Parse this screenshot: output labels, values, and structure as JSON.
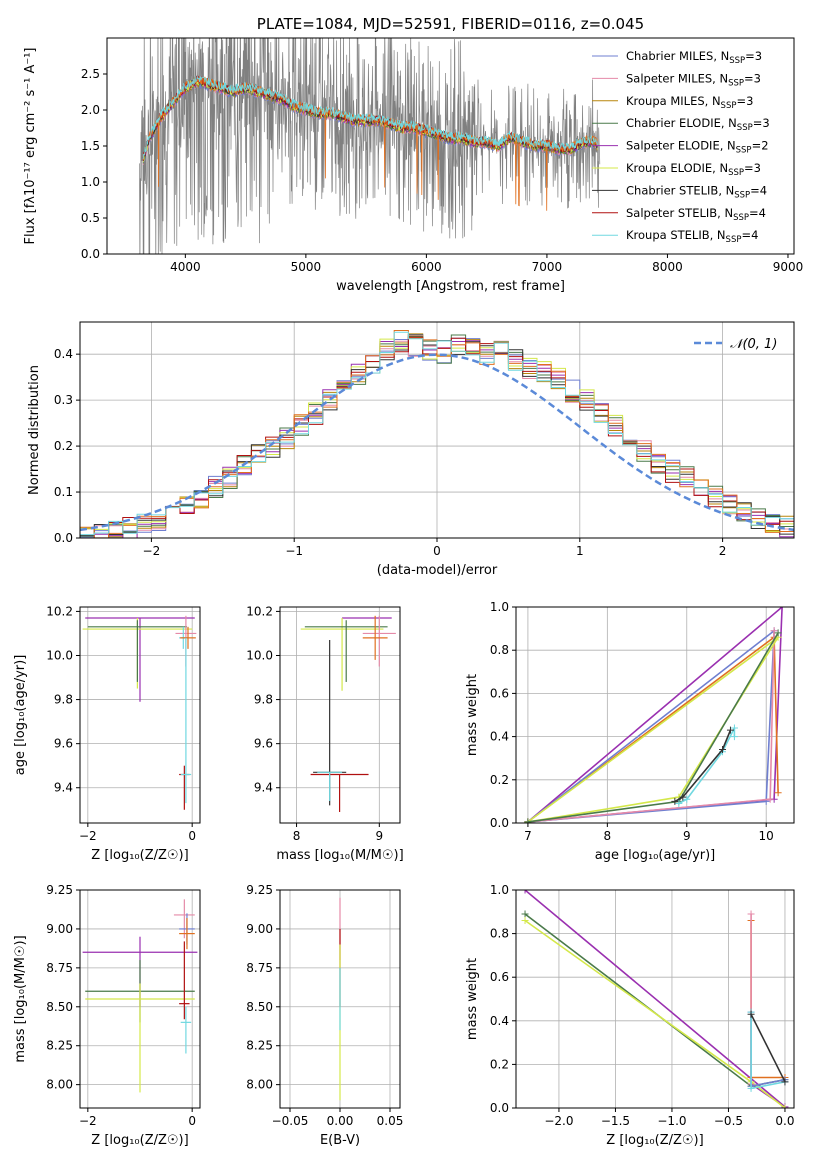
{
  "colors": {
    "chabrier_miles": "#6f7fd0",
    "salpeter_miles": "#e58aa8",
    "kroupa_miles": "#b8860b",
    "chabrier_elodie": "#4a7a4a",
    "salpeter_elodie": "#9a30b0",
    "kroupa_elodie": "#d4e84a",
    "chabrier_stelib": "#333333",
    "salpeter_stelib": "#b01010",
    "kroupa_stelib": "#70d8e0",
    "data": "#808080",
    "orange": "#e07020",
    "normal": "#5b8ad8"
  },
  "chart_data": [
    {
      "id": "spectrum",
      "type": "line",
      "title": "PLATE=1084, MJD=52591, FIBERID=0116, z=0.045",
      "xlabel": "wavelength [Angstrom, rest frame]",
      "ylabel": "Flux [fλ10⁻¹⁷ erg cm⁻² s⁻¹ A⁻¹]",
      "xlim": [
        3350,
        9050
      ],
      "ylim": [
        0,
        3.0
      ],
      "xticks": [
        "4000",
        "5000",
        "6000",
        "7000",
        "8000",
        "9000"
      ],
      "yticks": [
        "0.0",
        "0.5",
        "1.0",
        "1.5",
        "2.0",
        "2.5"
      ],
      "legend_position": "right",
      "legend": [
        "Chabrier MILES, N_SSP=3",
        "Salpeter MILES, N_SSP=3",
        "Kroupa MILES, N_SSP=3",
        "Chabrier ELODIE, N_SSP=3",
        "Salpeter ELODIE, N_SSP=2",
        "Kroupa ELODIE, N_SSP=3",
        "Chabrier STELIB, N_SSP=4",
        "Salpeter STELIB, N_SSP=4",
        "Kroupa STELIB, N_SSP=4"
      ],
      "model_envelope": {
        "x": [
          3650,
          3700,
          3800,
          3900,
          4000,
          4100,
          4200,
          4300,
          4400,
          4500,
          4600,
          4700,
          4800,
          4900,
          5000,
          5100,
          5200,
          5300,
          5400,
          5500,
          5600,
          5700,
          5800,
          5900,
          6000,
          6100,
          6200,
          6300,
          6400,
          6500,
          6600,
          6700,
          6800,
          6900,
          7000,
          7100,
          7200,
          7300,
          7400,
          7420
        ],
        "y": [
          1.3,
          1.6,
          1.9,
          2.1,
          2.3,
          2.4,
          2.35,
          2.3,
          2.25,
          2.3,
          2.25,
          2.2,
          2.15,
          2.05,
          2.0,
          1.95,
          1.95,
          1.9,
          1.85,
          1.85,
          1.85,
          1.8,
          1.75,
          1.75,
          1.7,
          1.65,
          1.6,
          1.6,
          1.55,
          1.55,
          1.5,
          1.62,
          1.55,
          1.5,
          1.5,
          1.45,
          1.45,
          1.55,
          1.55,
          1.5
        ]
      },
      "data_range": [
        3620,
        7440
      ]
    },
    {
      "id": "residuals",
      "type": "bar",
      "xlabel": "(data-model)/error",
      "ylabel": "Normed distribution",
      "xlim": [
        -2.5,
        2.5
      ],
      "ylim": [
        0,
        0.47
      ],
      "xticks": [
        "−2",
        "−1",
        "0",
        "1",
        "2"
      ],
      "yticks": [
        "0.0",
        "0.1",
        "0.2",
        "0.3",
        "0.4"
      ],
      "legend_position": "top-right",
      "legend": [
        "𝒩(0, 1)"
      ],
      "bin_width": 0.1,
      "bin_start": -2.5,
      "values": [
        0.005,
        0.01,
        0.015,
        0.02,
        0.03,
        0.04,
        0.055,
        0.07,
        0.085,
        0.11,
        0.13,
        0.155,
        0.18,
        0.2,
        0.215,
        0.245,
        0.27,
        0.3,
        0.33,
        0.355,
        0.38,
        0.41,
        0.43,
        0.42,
        0.41,
        0.405,
        0.42,
        0.41,
        0.4,
        0.405,
        0.39,
        0.37,
        0.36,
        0.345,
        0.32,
        0.3,
        0.27,
        0.245,
        0.22,
        0.19,
        0.16,
        0.145,
        0.135,
        0.115,
        0.09,
        0.07,
        0.06,
        0.045,
        0.035,
        0.025
      ]
    },
    {
      "id": "age_vs_z",
      "type": "scatter",
      "xlabel": "Z [log₁₀(Z/Z☉)]",
      "ylabel": "age  [log₁₀(age/yr)]",
      "xlim": [
        -2.15,
        0.15
      ],
      "ylim": [
        9.24,
        10.22
      ],
      "xticks": [
        "−2",
        "0"
      ],
      "yticks": [
        "9.4",
        "9.6",
        "9.8",
        "10.0",
        "10.2"
      ],
      "points": [
        {
          "s": "salpeter_elodie",
          "x": -1.0,
          "xerr": 1.05,
          "y": 10.17,
          "yerr": [
            0.38,
            0.0
          ]
        },
        {
          "s": "kroupa_elodie",
          "x": -1.05,
          "xerr": 1.05,
          "y": 10.12,
          "yerr": [
            0.27,
            0.05
          ]
        },
        {
          "s": "chabrier_elodie",
          "x": -1.05,
          "xerr": 0.95,
          "y": 10.13,
          "yerr": [
            0.25,
            0.03
          ]
        },
        {
          "s": "salpeter_miles",
          "x": -0.12,
          "xerr": 0.2,
          "y": 10.1,
          "yerr": [
            0.15,
            0.08
          ]
        },
        {
          "s": "kroupa_stelib",
          "x": -0.17,
          "xerr": 0.08,
          "y": 10.08,
          "yerr": [
            0.05,
            0.05
          ]
        },
        {
          "s": "orange",
          "x": -0.08,
          "xerr": 0.15,
          "y": 10.08,
          "yerr": [
            0.05,
            0.05
          ]
        },
        {
          "s": "salpeter_stelib",
          "x": -0.15,
          "xerr": 0.1,
          "y": 9.46,
          "yerr": [
            0.16,
            0.04
          ]
        },
        {
          "s": "kroupa_stelib",
          "x": -0.12,
          "xerr": 0.1,
          "y": 9.46,
          "yerr": [
            0.13,
            0.62
          ]
        }
      ]
    },
    {
      "id": "age_vs_mass",
      "type": "scatter",
      "xlabel": "mass [log₁₀(M/M☉)]",
      "ylabel": "",
      "xlim": [
        7.8,
        9.25
      ],
      "ylim": [
        9.24,
        10.22
      ],
      "xticks": [
        "8",
        "9"
      ],
      "yticks": [
        "9.4",
        "9.6",
        "9.8",
        "10.0",
        "10.2"
      ],
      "points": [
        {
          "s": "salpeter_elodie",
          "x": 8.85,
          "xerr": 0.3,
          "y": 10.17,
          "yerr": [
            0.0,
            0.0
          ]
        },
        {
          "s": "kroupa_elodie",
          "x": 8.55,
          "xerr": 0.5,
          "y": 10.12,
          "yerr": [
            0.28,
            0.05
          ]
        },
        {
          "s": "chabrier_elodie",
          "x": 8.6,
          "xerr": 0.5,
          "y": 10.13,
          "yerr": [
            0.25,
            0.03
          ]
        },
        {
          "s": "salpeter_miles",
          "x": 9.0,
          "xerr": 0.2,
          "y": 10.1,
          "yerr": [
            0.15,
            0.08
          ]
        },
        {
          "s": "orange",
          "x": 8.95,
          "xerr": 0.15,
          "y": 10.08,
          "yerr": [
            0.1,
            0.1
          ]
        },
        {
          "s": "chabrier_stelib",
          "x": 8.4,
          "xerr": 0.2,
          "y": 9.47,
          "yerr": [
            0.15,
            0.6
          ]
        },
        {
          "s": "salpeter_stelib",
          "x": 8.52,
          "xerr": 0.35,
          "y": 9.46,
          "yerr": [
            0.17,
            0.0
          ]
        },
        {
          "s": "kroupa_stelib",
          "x": 8.4,
          "xerr": 0.15,
          "y": 9.47,
          "yerr": [
            0.13,
            0.0
          ]
        }
      ]
    },
    {
      "id": "weight_vs_age",
      "type": "line",
      "xlabel": "age  [log₁₀(age/yr)]",
      "ylabel": "mass weight",
      "xlim": [
        6.85,
        10.35
      ],
      "ylim": [
        0,
        1.0
      ],
      "xticks": [
        "7",
        "8",
        "9",
        "10"
      ],
      "yticks": [
        "0.0",
        "0.2",
        "0.4",
        "0.6",
        "0.8",
        "1.0"
      ],
      "series": [
        {
          "s": "salpeter_elodie",
          "x": [
            7.0,
            10.2,
            10.1,
            7.0
          ],
          "y": [
            0.005,
            1.0,
            0.11,
            0.005
          ]
        },
        {
          "s": "orange",
          "x": [
            7.0,
            10.1,
            10.15
          ],
          "y": [
            0.005,
            0.86,
            0.14
          ]
        },
        {
          "s": "chabrier_miles",
          "x": [
            7.0,
            10.0,
            10.1,
            7.0
          ],
          "y": [
            0.005,
            0.1,
            0.89,
            0.005
          ]
        },
        {
          "s": "salpeter_miles",
          "x": [
            7.0,
            10.05,
            10.1
          ],
          "y": [
            0.005,
            0.11,
            0.89
          ]
        },
        {
          "s": "kroupa_elodie",
          "x": [
            7.0,
            8.9,
            10.15,
            7.0
          ],
          "y": [
            0.005,
            0.12,
            0.86,
            0.005
          ]
        },
        {
          "s": "chabrier_elodie",
          "x": [
            7.0,
            8.9,
            10.15
          ],
          "y": [
            0.005,
            0.1,
            0.88
          ]
        },
        {
          "s": "kroupa_stelib",
          "x": [
            8.9,
            9.0,
            9.45,
            9.6,
            9.6
          ],
          "y": [
            0.09,
            0.11,
            0.33,
            0.44,
            0.4
          ]
        },
        {
          "s": "chabrier_stelib",
          "x": [
            8.85,
            8.95,
            9.45,
            9.55
          ],
          "y": [
            0.1,
            0.12,
            0.34,
            0.43
          ]
        }
      ]
    },
    {
      "id": "mass_vs_z",
      "type": "scatter",
      "xlabel": "Z [log₁₀(Z/Z☉)]",
      "ylabel": "mass [log₁₀(M/M☉)]",
      "xlim": [
        -2.15,
        0.15
      ],
      "ylim": [
        7.85,
        9.25
      ],
      "xticks": [
        "−2",
        "0"
      ],
      "yticks": [
        "8.00",
        "8.25",
        "8.50",
        "8.75",
        "9.00",
        "9.25"
      ],
      "points": [
        {
          "s": "salpeter_elodie",
          "x": -1.0,
          "xerr": 1.1,
          "y": 8.85,
          "yerr": [
            0.35,
            0.1
          ]
        },
        {
          "s": "chabrier_elodie",
          "x": -1.0,
          "xerr": 1.05,
          "y": 8.6,
          "yerr": [
            0.2,
            0.2
          ]
        },
        {
          "s": "kroupa_elodie",
          "x": -1.0,
          "xerr": 1.05,
          "y": 8.55,
          "yerr": [
            0.6,
            0.1
          ]
        },
        {
          "s": "salpeter_miles",
          "x": -0.15,
          "xerr": 0.2,
          "y": 9.09,
          "yerr": [
            0.15,
            0.1
          ]
        },
        {
          "s": "chabrier_miles",
          "x": -0.1,
          "xerr": 0.15,
          "y": 9.0,
          "yerr": [
            0.1,
            0.1
          ]
        },
        {
          "s": "orange",
          "x": -0.1,
          "xerr": 0.15,
          "y": 8.97,
          "yerr": [
            0.1,
            0.1
          ]
        },
        {
          "s": "salpeter_stelib",
          "x": -0.15,
          "xerr": 0.1,
          "y": 8.52,
          "yerr": [
            0.1,
            0.4
          ]
        },
        {
          "s": "kroupa_stelib",
          "x": -0.12,
          "xerr": 0.1,
          "y": 8.4,
          "yerr": [
            0.2,
            0.1
          ]
        }
      ]
    },
    {
      "id": "mass_vs_ebv",
      "type": "scatter",
      "xlabel": "E(B-V)",
      "ylabel": "",
      "xlim": [
        -0.06,
        0.06
      ],
      "ylim": [
        7.85,
        9.25
      ],
      "xticks": [
        "−0.05",
        "0.00",
        "0.05"
      ],
      "yticks": [
        "8.00",
        "8.25",
        "8.50",
        "8.75",
        "9.00",
        "9.25"
      ],
      "points": [
        {
          "s": "salpeter_miles",
          "x": 0.0,
          "xerr": 0.0,
          "y": 9.0,
          "yerr": [
            0.2,
            0.2
          ]
        },
        {
          "s": "salpeter_stelib",
          "x": 0.0,
          "xerr": 0.0,
          "y": 8.8,
          "yerr": [
            0.3,
            0.2
          ]
        },
        {
          "s": "kroupa_elodie",
          "x": 0.0,
          "xerr": 0.0,
          "y": 8.3,
          "yerr": [
            0.4,
            0.6
          ]
        },
        {
          "s": "kroupa_stelib",
          "x": 0.0,
          "xerr": 0.0,
          "y": 8.55,
          "yerr": [
            0.2,
            0.2
          ]
        }
      ]
    },
    {
      "id": "weight_vs_z",
      "type": "line",
      "xlabel": "Z [log₁₀(Z/Z☉)]",
      "ylabel": "mass weight",
      "xlim": [
        -2.38,
        0.08
      ],
      "ylim": [
        0,
        1.0
      ],
      "xticks": [
        "−2.0",
        "−1.5",
        "−1.0",
        "−0.5",
        "0.0"
      ],
      "yticks": [
        "0.0",
        "0.2",
        "0.4",
        "0.6",
        "0.8",
        "1.0"
      ],
      "series": [
        {
          "s": "salpeter_elodie",
          "x": [
            -2.3,
            0.0,
            -0.3
          ],
          "y": [
            1.0,
            0.005,
            0.11
          ]
        },
        {
          "s": "chabrier_elodie",
          "x": [
            -2.3,
            -0.3,
            0.0
          ],
          "y": [
            0.89,
            0.1,
            0.13
          ]
        },
        {
          "s": "kroupa_elodie",
          "x": [
            -2.3,
            -0.3,
            0.0
          ],
          "y": [
            0.86,
            0.12,
            0.0
          ]
        },
        {
          "s": "orange",
          "x": [
            -0.3,
            -0.3,
            0.0
          ],
          "y": [
            0.86,
            0.14,
            0.14
          ]
        },
        {
          "s": "salpeter_miles",
          "x": [
            -0.3,
            -0.3
          ],
          "y": [
            0.89,
            0.11
          ]
        },
        {
          "s": "chabrier_miles",
          "x": [
            -0.3,
            -0.3,
            0.0,
            0.0
          ],
          "y": [
            0.44,
            0.1,
            0.13,
            0.12
          ]
        },
        {
          "s": "kroupa_stelib",
          "x": [
            -0.3,
            -0.3,
            0.0
          ],
          "y": [
            0.44,
            0.09,
            0.12
          ]
        },
        {
          "s": "chabrier_stelib",
          "x": [
            -0.3,
            0.0
          ],
          "y": [
            0.43,
            0.12
          ]
        }
      ]
    }
  ]
}
